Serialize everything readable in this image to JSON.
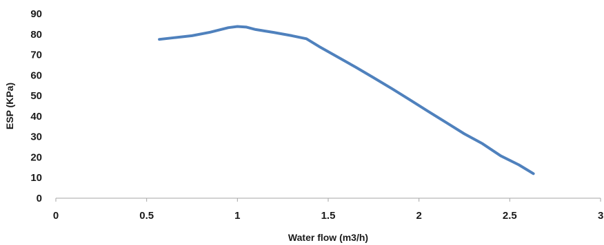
{
  "chart_data": {
    "type": "line",
    "title": "",
    "xlabel": "Water flow (m3/h)",
    "ylabel": "ESP (KPa)",
    "xlim": [
      0,
      3
    ],
    "ylim": [
      0,
      90
    ],
    "x_ticks": [
      0,
      0.5,
      1,
      1.5,
      2,
      2.5,
      3
    ],
    "x_tick_labels": [
      "0",
      "0.5",
      "1",
      "1.5",
      "2",
      "2.5",
      "3"
    ],
    "y_ticks": [
      0,
      10,
      20,
      30,
      40,
      50,
      60,
      70,
      80,
      90
    ],
    "y_tick_labels": [
      "0",
      "10",
      "20",
      "30",
      "40",
      "50",
      "60",
      "70",
      "80",
      "90"
    ],
    "grid": false,
    "legend": "none",
    "series": [
      {
        "color": "#4f81bd",
        "x": [
          0.57,
          0.65,
          0.75,
          0.85,
          0.95,
          1.0,
          1.05,
          1.1,
          1.2,
          1.3,
          1.38,
          1.45,
          1.55,
          1.65,
          1.75,
          1.85,
          1.95,
          2.05,
          2.15,
          2.25,
          2.35,
          2.45,
          2.55,
          2.63
        ],
        "y": [
          77.5,
          78.3,
          79.3,
          81.0,
          83.2,
          83.8,
          83.5,
          82.3,
          80.9,
          79.3,
          77.8,
          74.0,
          69.0,
          64.0,
          58.8,
          53.5,
          48.0,
          42.4,
          36.9,
          31.4,
          26.6,
          20.7,
          16.3,
          12.0
        ]
      }
    ]
  }
}
